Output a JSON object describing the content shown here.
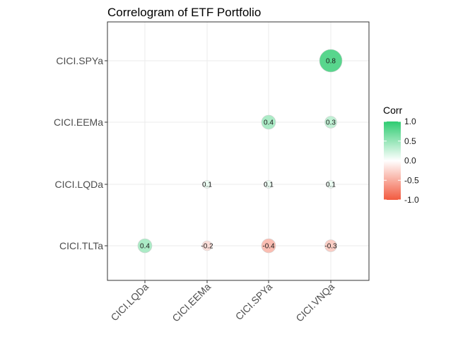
{
  "chart_data": {
    "type": "heatmap",
    "subtype": "correlogram-circles",
    "title": "Correlogram of ETF Portfolio",
    "x_categories": [
      "CICI.LQDa",
      "CICI.EEMa",
      "CICI.SPYa",
      "CICI.VNQa"
    ],
    "y_categories": [
      "CICI.TLTa",
      "CICI.LQDa",
      "CICI.EEMa",
      "CICI.SPYa"
    ],
    "cells": [
      {
        "x": "CICI.LQDa",
        "y": "CICI.TLTa",
        "value": 0.4,
        "label": "0.4"
      },
      {
        "x": "CICI.EEMa",
        "y": "CICI.TLTa",
        "value": -0.2,
        "label": "-0.2"
      },
      {
        "x": "CICI.SPYa",
        "y": "CICI.TLTa",
        "value": -0.4,
        "label": "-0.4"
      },
      {
        "x": "CICI.VNQa",
        "y": "CICI.TLTa",
        "value": -0.3,
        "label": "-0.3"
      },
      {
        "x": "CICI.EEMa",
        "y": "CICI.LQDa",
        "value": 0.1,
        "label": "0.1"
      },
      {
        "x": "CICI.SPYa",
        "y": "CICI.LQDa",
        "value": 0.1,
        "label": "0.1"
      },
      {
        "x": "CICI.VNQa",
        "y": "CICI.LQDa",
        "value": 0.1,
        "label": "0.1"
      },
      {
        "x": "CICI.SPYa",
        "y": "CICI.EEMa",
        "value": 0.4,
        "label": "0.4"
      },
      {
        "x": "CICI.VNQa",
        "y": "CICI.EEMa",
        "value": 0.3,
        "label": "0.3"
      },
      {
        "x": "CICI.VNQa",
        "y": "CICI.SPYa",
        "value": 0.8,
        "label": "0.8"
      }
    ],
    "legend": {
      "title": "Corr",
      "ticks": [
        {
          "value": 1.0,
          "label": "1.0"
        },
        {
          "value": 0.5,
          "label": "0.5"
        },
        {
          "value": 0.0,
          "label": "0.0"
        },
        {
          "value": -0.5,
          "label": "-0.5"
        },
        {
          "value": -1.0,
          "label": "-1.0"
        }
      ],
      "range": [
        -1.0,
        1.0
      ],
      "placement": "right"
    },
    "colors": {
      "positive": "#2ecc71",
      "neutral": "#ffffff",
      "negative": "#f25a3f"
    },
    "grid": true,
    "x_label_rotation": "45deg"
  }
}
